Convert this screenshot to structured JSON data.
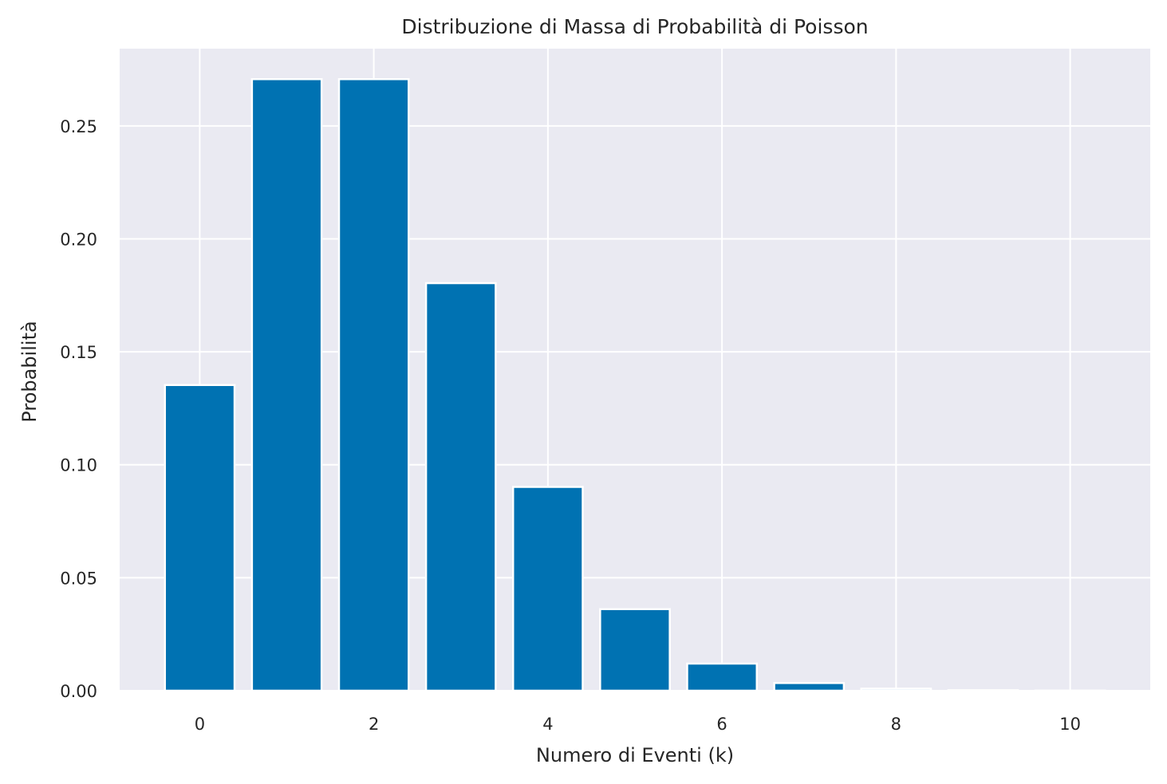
{
  "chart_data": {
    "type": "bar",
    "title": "Distribuzione di Massa di Probabilità di Poisson",
    "xlabel": "Numero di Eventi (k)",
    "ylabel": "Probabilità",
    "categories": [
      0,
      1,
      2,
      3,
      4,
      5,
      6,
      7,
      8,
      9,
      10
    ],
    "values": [
      0.1353,
      0.2707,
      0.2707,
      0.1804,
      0.0902,
      0.0361,
      0.012,
      0.0034,
      0.0009,
      0.0002,
      4e-05
    ],
    "xlim": [
      -0.92,
      10.92
    ],
    "ylim": [
      0,
      0.2842
    ],
    "xticks": [
      0,
      2,
      4,
      6,
      8,
      10
    ],
    "xtick_labels": [
      "0",
      "2",
      "4",
      "6",
      "8",
      "10"
    ],
    "yticks": [
      0,
      0.05,
      0.1,
      0.15,
      0.2,
      0.25
    ],
    "ytick_labels": [
      "0.00",
      "0.05",
      "0.10",
      "0.15",
      "0.20",
      "0.25"
    ],
    "grid": true,
    "bar_color": "#0072b2",
    "plot_background": "#eaeaf2",
    "grid_color": "#ffffff"
  }
}
